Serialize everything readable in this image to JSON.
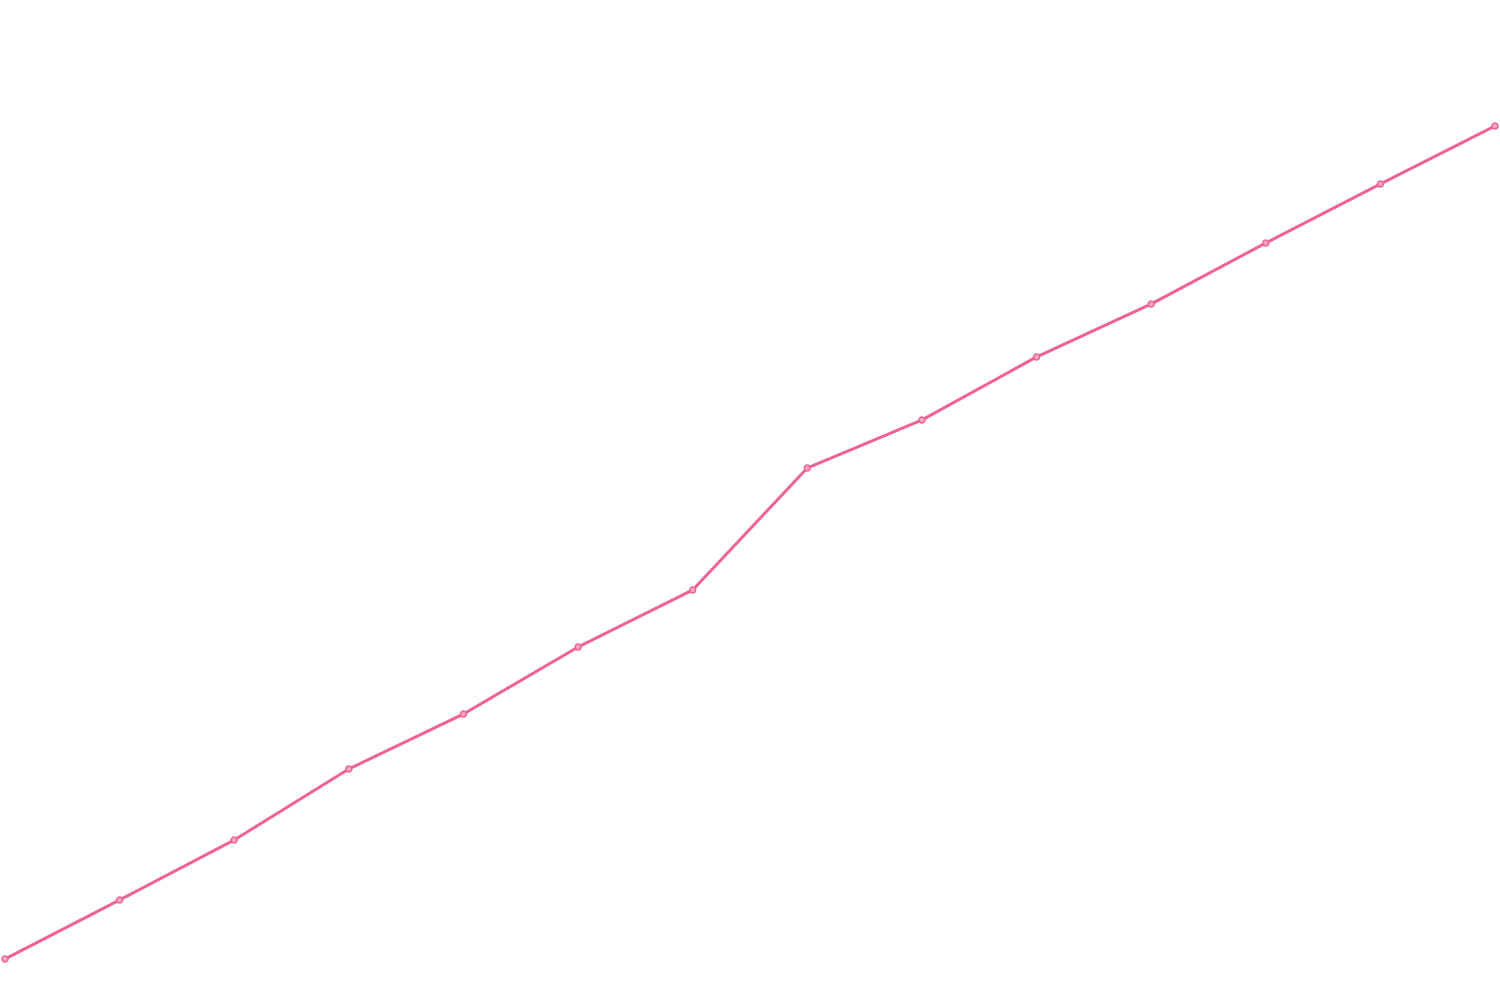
{
  "chart_data": {
    "type": "line",
    "title": "",
    "xlabel": "",
    "ylabel": "",
    "grid": false,
    "legend": "none",
    "x": [
      1,
      2,
      3,
      4,
      5,
      6,
      7,
      8,
      9,
      10,
      11,
      12,
      13,
      14
    ],
    "series": [
      {
        "color": "#f06292",
        "values": [
          0,
          59,
          119,
          190,
          245,
          312,
          369,
          491,
          539,
          602,
          655,
          716,
          775,
          833
        ]
      }
    ],
    "xlim": [
      1,
      14
    ],
    "ylim": [
      0,
      833
    ]
  }
}
